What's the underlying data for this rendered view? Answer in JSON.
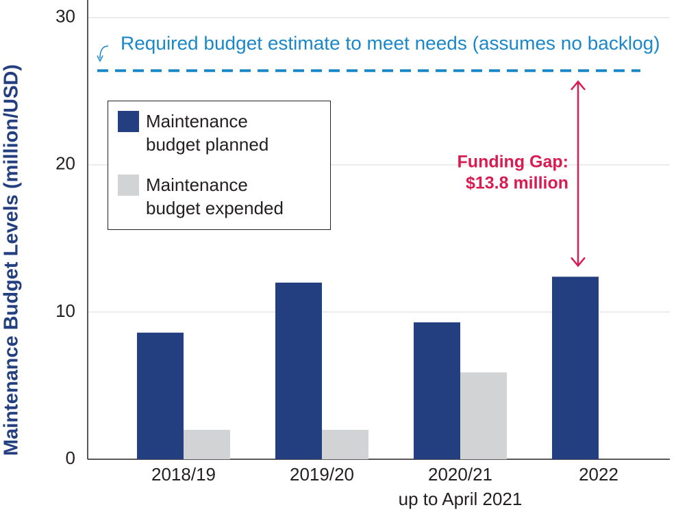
{
  "chart_data": {
    "type": "bar",
    "y_label": "Maintenance Budget Levels (million/USD)",
    "categories": [
      [
        "2018/19"
      ],
      [
        "2019/20"
      ],
      [
        "2020/21",
        "up to April 2021"
      ],
      [
        "2022"
      ]
    ],
    "series": [
      {
        "name": "Maintenance budget planned",
        "color": "#243f7f",
        "values": [
          8.6,
          12.0,
          9.3,
          12.4
        ]
      },
      {
        "name": "Maintenance budget expended",
        "color": "#d1d3d4",
        "values": [
          2.0,
          2.0,
          5.9,
          null
        ]
      }
    ],
    "reference": {
      "label": "Required budget estimate to meet needs (assumes no backlog)",
      "value": 26.4,
      "color": "#1a87c9"
    },
    "gap_annotation": {
      "lines": [
        "Funding Gap:",
        "$13.8 million"
      ],
      "color": "#d81b51"
    },
    "ylim": [
      0,
      31.2
    ],
    "yticks": [
      0,
      10,
      20,
      30
    ],
    "grid": true,
    "legend": "upper left"
  }
}
